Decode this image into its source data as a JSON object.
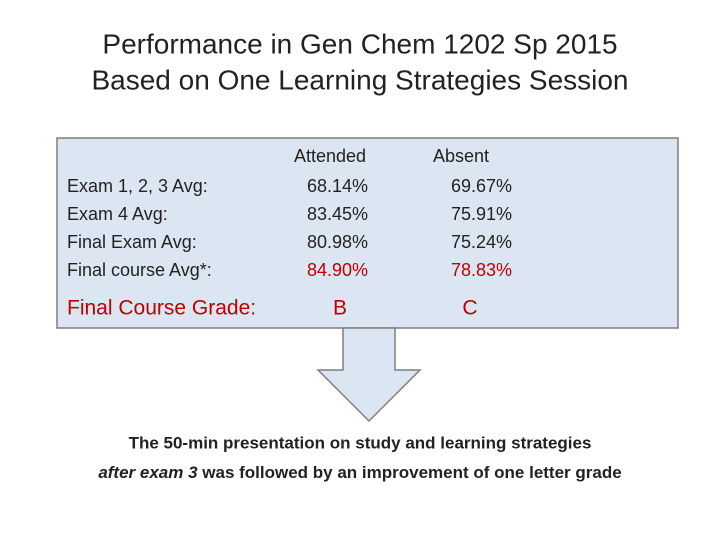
{
  "title": {
    "lines": [
      "Performance in Gen Chem 1202 Sp 2015",
      "Based on One Learning Strategies Session"
    ]
  },
  "table": {
    "header": [
      "Attended",
      "Absent"
    ],
    "rows": [
      [
        "Exam 1, 2, 3 Avg:",
        "68.14%",
        "69.67%"
      ],
      [
        "Exam 4 Avg:",
        "83.45%",
        "75.91%"
      ],
      [
        "Final Exam Avg:",
        "80.98%",
        "75.24%"
      ],
      [
        "Final course Avg*:",
        "84.90%",
        "78.83%"
      ]
    ],
    "grade_row": [
      "Final Course Grade:",
      "B",
      "C"
    ]
  },
  "caption": {
    "line1": "The 50-min presentation on study and learning strategies",
    "line2_italic": "after exam 3",
    "line2_rest": " was followed by an improvement of one letter grade"
  }
}
